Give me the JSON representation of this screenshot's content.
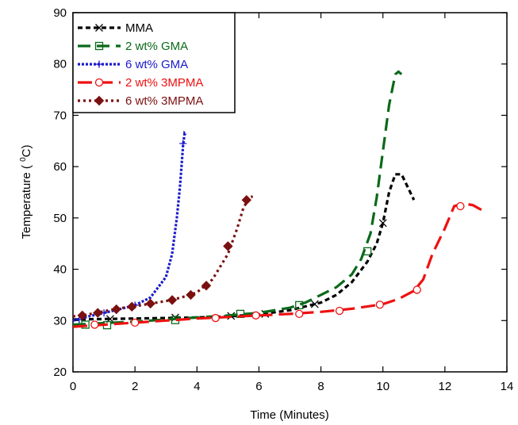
{
  "chart_data": {
    "type": "line",
    "xlabel": "Time (Minutes)",
    "ylabel_main": "Temperature ( ",
    "ylabel_sup": "0",
    "ylabel_end": "C)",
    "xlim": [
      0,
      14
    ],
    "ylim": [
      20,
      90
    ],
    "xticks": [
      0,
      2,
      4,
      6,
      8,
      10,
      12,
      14
    ],
    "yticks": [
      20,
      30,
      40,
      50,
      60,
      70,
      80,
      90
    ],
    "grid": false,
    "legend_position": "top-left",
    "series": [
      {
        "name": "MMA",
        "color": "#000000",
        "dash": "6,4",
        "marker": "cross",
        "x": [
          0,
          1,
          2,
          3,
          4,
          5,
          6,
          7,
          8,
          8.5,
          9,
          9.5,
          9.8,
          10.0,
          10.2,
          10.4,
          10.6,
          10.8,
          11.0
        ],
        "y": [
          30.2,
          30.3,
          30.4,
          30.5,
          30.6,
          30.8,
          31.2,
          32,
          33.5,
          35,
          37.5,
          41.5,
          45,
          49,
          55,
          58.5,
          58.5,
          56,
          53.5
        ],
        "markers_x": [
          1.2,
          3.3,
          5.1,
          6.2,
          7.8,
          10.0
        ],
        "markers_y": [
          30.3,
          30.6,
          30.9,
          31.3,
          33.2,
          49
        ]
      },
      {
        "name": "2 wt% GMA",
        "color": "#0a6a1a",
        "dash": "16,8",
        "marker": "square",
        "x": [
          0,
          1,
          2,
          3,
          4,
          5,
          6,
          7,
          7.5,
          8,
          8.5,
          9,
          9.3,
          9.6,
          9.8,
          10.0,
          10.2,
          10.4,
          10.5,
          10.6
        ],
        "y": [
          29.2,
          29.5,
          29.8,
          30.2,
          30.6,
          31,
          31.5,
          32.5,
          33.5,
          35,
          36.5,
          39,
          42,
          47,
          54,
          63,
          72,
          78,
          78.5,
          78
        ],
        "markers_x": [
          0.4,
          1.1,
          3.3,
          5.4,
          7.3,
          9.5
        ],
        "markers_y": [
          29.2,
          29.1,
          30.1,
          31.3,
          33,
          43.5
        ]
      },
      {
        "name": "6 wt% GMA",
        "color": "#1a1acc",
        "dash": "3,2",
        "marker": "plus",
        "x": [
          0,
          0.5,
          1,
          1.5,
          2,
          2.5,
          3,
          3.2,
          3.35,
          3.45,
          3.5,
          3.55,
          3.6,
          3.65
        ],
        "y": [
          30,
          30.8,
          31.5,
          32.2,
          33,
          34.5,
          38.5,
          43,
          50,
          56,
          60,
          64,
          66.5,
          66.2
        ],
        "markers_x": [
          0.2,
          1.0,
          2.0,
          3.55
        ],
        "markers_y": [
          30.2,
          31.5,
          33,
          64.5
        ]
      },
      {
        "name": "2 wt% 3MPMA",
        "color": "#ee1111",
        "dash": "18,8",
        "marker": "circle",
        "x": [
          0,
          1,
          2,
          3,
          4,
          5,
          6,
          7,
          8,
          9,
          10,
          10.5,
          11,
          11.3,
          11.6,
          12,
          12.3,
          12.6,
          12.9,
          13.2
        ],
        "y": [
          28.8,
          29.2,
          29.6,
          30,
          30.4,
          30.7,
          31,
          31.3,
          31.7,
          32.3,
          33.2,
          34.2,
          35.8,
          38,
          43,
          48,
          52.3,
          52.8,
          52.5,
          51.5
        ],
        "markers_x": [
          0.7,
          2.0,
          4.6,
          5.9,
          7.3,
          8.6,
          9.9,
          11.1,
          12.5
        ],
        "markers_y": [
          29.2,
          29.6,
          30.5,
          31,
          31.3,
          31.9,
          33.1,
          36,
          52.3
        ]
      },
      {
        "name": "6 wt% 3MPMA",
        "color": "#7a1010",
        "dash": "3,4",
        "marker": "diamond",
        "x": [
          0,
          0.5,
          1,
          1.5,
          2,
          2.5,
          3,
          3.5,
          4,
          4.5,
          5,
          5.3,
          5.5,
          5.7,
          5.8
        ],
        "y": [
          30.8,
          31.2,
          31.8,
          32.4,
          32.8,
          33.3,
          33.8,
          34.5,
          35.5,
          38,
          43,
          48,
          52,
          54,
          54.2
        ],
        "markers_x": [
          0.3,
          0.8,
          1.4,
          1.9,
          2.5,
          3.2,
          3.8,
          4.3,
          5.0,
          5.6
        ],
        "markers_y": [
          31,
          31.5,
          32.2,
          32.7,
          33.3,
          34,
          35,
          36.8,
          44.5,
          53.5
        ]
      }
    ]
  }
}
